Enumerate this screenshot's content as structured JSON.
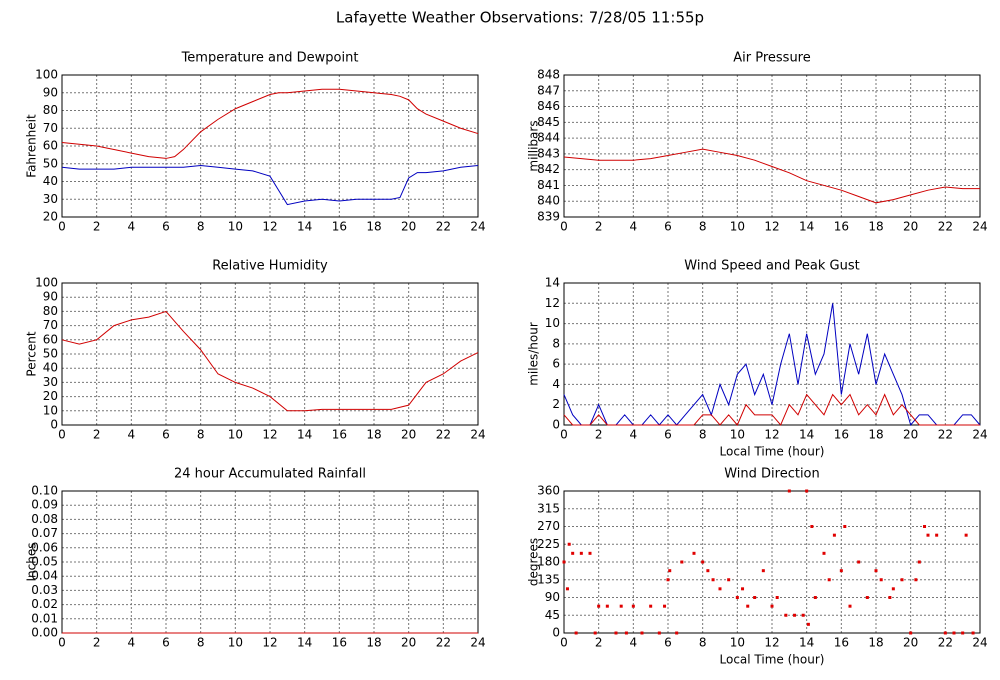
{
  "title": "Lafayette Weather Observations: 7/28/05 11:55p",
  "chart_data": [
    {
      "type": "line",
      "title": "Temperature and Dewpoint",
      "ylabel": "Fahrenheit",
      "x": [
        0,
        1,
        2,
        3,
        4,
        5,
        6,
        6.5,
        7,
        8,
        9,
        10,
        11,
        12,
        12.5,
        13,
        14,
        15,
        16,
        17,
        18,
        19,
        19.5,
        20,
        20.5,
        21,
        22,
        23,
        24
      ],
      "series": [
        {
          "color": "#d00000",
          "values": [
            62,
            61,
            60,
            58,
            56,
            54,
            53,
            54,
            58,
            68,
            75,
            81,
            85,
            89,
            90,
            90,
            91,
            92,
            92,
            91,
            90,
            89,
            88,
            86,
            81,
            78,
            74,
            70,
            67
          ]
        },
        {
          "color": "#0000c0",
          "values": [
            48,
            47,
            47,
            47,
            48,
            48,
            48,
            48,
            48,
            49,
            48,
            47,
            46,
            43,
            35,
            27,
            29,
            30,
            29,
            30,
            30,
            30,
            31,
            42,
            45,
            45,
            46,
            48,
            49
          ]
        }
      ],
      "xlim": [
        0,
        24
      ],
      "xticks": [
        0,
        2,
        4,
        6,
        8,
        10,
        12,
        14,
        16,
        18,
        20,
        22,
        24
      ],
      "ylim": [
        20,
        100
      ],
      "yticks": [
        20,
        30,
        40,
        50,
        60,
        70,
        80,
        90,
        100
      ],
      "grid": true
    },
    {
      "type": "line",
      "title": "Air Pressure",
      "ylabel": "millibars",
      "x": [
        0,
        1,
        2,
        3,
        4,
        5,
        6,
        7,
        8,
        9,
        10,
        11,
        12,
        13,
        14,
        15,
        16,
        17,
        18,
        19,
        20,
        21,
        22,
        23,
        24
      ],
      "series": [
        {
          "color": "#d00000",
          "values": [
            842.8,
            842.7,
            842.6,
            842.6,
            842.6,
            842.7,
            842.9,
            843.1,
            843.3,
            843.1,
            842.9,
            842.6,
            842.2,
            841.8,
            841.3,
            841,
            840.7,
            840.3,
            839.9,
            840.1,
            840.4,
            840.7,
            840.9,
            840.8,
            840.8
          ]
        }
      ],
      "xlim": [
        0,
        24
      ],
      "xticks": [
        0,
        2,
        4,
        6,
        8,
        10,
        12,
        14,
        16,
        18,
        20,
        22,
        24
      ],
      "ylim": [
        839,
        848
      ],
      "yticks": [
        839,
        840,
        841,
        842,
        843,
        844,
        845,
        846,
        847,
        848
      ],
      "grid": true
    },
    {
      "type": "line",
      "title": "Relative Humidity",
      "ylabel": "Percent",
      "x": [
        0,
        1,
        2,
        3,
        4,
        5,
        6,
        7,
        8,
        9,
        10,
        11,
        12,
        13,
        14,
        15,
        16,
        17,
        18,
        19,
        20,
        21,
        22,
        23,
        24
      ],
      "series": [
        {
          "color": "#d00000",
          "values": [
            60,
            57,
            60,
            70,
            74,
            76,
            80,
            66,
            53,
            36,
            30,
            26,
            20,
            10,
            10,
            11,
            11,
            11,
            11,
            11,
            14,
            30,
            36,
            45,
            51
          ]
        }
      ],
      "xlim": [
        0,
        24
      ],
      "xticks": [
        0,
        2,
        4,
        6,
        8,
        10,
        12,
        14,
        16,
        18,
        20,
        22,
        24
      ],
      "ylim": [
        0,
        100
      ],
      "yticks": [
        0,
        10,
        20,
        30,
        40,
        50,
        60,
        70,
        80,
        90,
        100
      ],
      "grid": true
    },
    {
      "type": "line",
      "title": "Wind Speed and Peak Gust",
      "ylabel": "miles/hour",
      "xlabel": "Local Time (hour)",
      "x": [
        0,
        0.5,
        1,
        1.5,
        2,
        2.5,
        3,
        3.5,
        4,
        4.5,
        5,
        5.5,
        6,
        6.5,
        7,
        7.5,
        8,
        8.5,
        9,
        9.5,
        10,
        10.5,
        11,
        11.5,
        12,
        12.5,
        13,
        13.5,
        14,
        14.5,
        15,
        15.5,
        16,
        16.5,
        17,
        17.5,
        18,
        18.5,
        19,
        19.5,
        20,
        20.5,
        21,
        21.5,
        22,
        22.5,
        23,
        23.5,
        24
      ],
      "series": [
        {
          "color": "#0000c0",
          "values": [
            3,
            1,
            0,
            0,
            2,
            0,
            0,
            1,
            0,
            0,
            1,
            0,
            1,
            0,
            1,
            2,
            3,
            1,
            4,
            2,
            5,
            6,
            3,
            5,
            2,
            6,
            9,
            4,
            9,
            5,
            7,
            12,
            3,
            8,
            5,
            9,
            4,
            7,
            5,
            3,
            0,
            1,
            1,
            0,
            0,
            0,
            1,
            1,
            0
          ]
        },
        {
          "color": "#d00000",
          "values": [
            1,
            0,
            0,
            0,
            1,
            0,
            0,
            0,
            0,
            0,
            0,
            0,
            0,
            0,
            0,
            0,
            1,
            1,
            0,
            1,
            0,
            2,
            1,
            1,
            1,
            0,
            2,
            1,
            3,
            2,
            1,
            3,
            2,
            3,
            1,
            2,
            1,
            3,
            1,
            2,
            1,
            0,
            0,
            0,
            0,
            0,
            0,
            0,
            0
          ]
        }
      ],
      "xlim": [
        0,
        24
      ],
      "xticks": [
        0,
        2,
        4,
        6,
        8,
        10,
        12,
        14,
        16,
        18,
        20,
        22,
        24
      ],
      "ylim": [
        0,
        14
      ],
      "yticks": [
        0,
        2,
        4,
        6,
        8,
        10,
        12,
        14
      ],
      "grid": true
    },
    {
      "type": "line",
      "title": "24 hour Accumulated Rainfall",
      "ylabel": "Inches",
      "x": [
        0,
        24
      ],
      "series": [
        {
          "color": "#d00000",
          "values": [
            0,
            0
          ]
        }
      ],
      "xlim": [
        0,
        24
      ],
      "xticks": [
        0,
        2,
        4,
        6,
        8,
        10,
        12,
        14,
        16,
        18,
        20,
        22,
        24
      ],
      "ylim": [
        0,
        0.1
      ],
      "yticks": [
        {
          "value": 0,
          "label": "0.00"
        },
        {
          "value": 0.01,
          "label": "0.01"
        },
        {
          "value": 0.02,
          "label": "0.02"
        },
        {
          "value": 0.03,
          "label": "0.03"
        },
        {
          "value": 0.04,
          "label": "0.04"
        },
        {
          "value": 0.05,
          "label": "0.05"
        },
        {
          "value": 0.06,
          "label": "0.06"
        },
        {
          "value": 0.07,
          "label": "0.07"
        },
        {
          "value": 0.08,
          "label": "0.08"
        },
        {
          "value": 0.09,
          "label": "0.09"
        },
        {
          "value": 0.1,
          "label": "0.10"
        }
      ],
      "grid": true
    },
    {
      "type": "scatter",
      "title": "Wind Direction",
      "ylabel": "degrees",
      "xlabel": "Local Time (hour)",
      "x": [
        0,
        0.2,
        0.3,
        0.5,
        0.7,
        1,
        1.5,
        1.8,
        2,
        2.5,
        3,
        3.3,
        3.6,
        4,
        4.5,
        5,
        5.5,
        5.8,
        6,
        6.1,
        6.5,
        6.8,
        7.5,
        8,
        8.3,
        8.6,
        9,
        9.5,
        10,
        10.3,
        10.6,
        11,
        11.5,
        12,
        12.3,
        12.8,
        13,
        13.3,
        13.8,
        14,
        14.1,
        14.3,
        14.5,
        15,
        15.3,
        15.6,
        16,
        16.2,
        16.5,
        17,
        17.5,
        18,
        18.3,
        18.8,
        19,
        19.5,
        20,
        20.3,
        20.5,
        20.8,
        21,
        21.5,
        22,
        22.5,
        23,
        23.2,
        23.6
      ],
      "series": [
        {
          "color": "#e00000",
          "values": [
            180,
            112,
            225,
            202,
            0,
            202,
            202,
            0,
            68,
            68,
            0,
            68,
            0,
            68,
            0,
            68,
            0,
            68,
            135,
            158,
            0,
            180,
            202,
            180,
            158,
            135,
            112,
            135,
            90,
            112,
            68,
            90,
            158,
            68,
            90,
            45,
            360,
            45,
            45,
            360,
            22,
            270,
            90,
            202,
            135,
            248,
            158,
            270,
            68,
            180,
            90,
            158,
            135,
            90,
            112,
            135,
            0,
            135,
            180,
            270,
            248,
            248,
            0,
            0,
            0,
            248,
            0
          ]
        }
      ],
      "xlim": [
        0,
        24
      ],
      "xticks": [
        0,
        2,
        4,
        6,
        8,
        10,
        12,
        14,
        16,
        18,
        20,
        22,
        24
      ],
      "ylim": [
        0,
        360
      ],
      "yticks": [
        0,
        45,
        90,
        135,
        180,
        225,
        270,
        315,
        360
      ],
      "grid": true
    }
  ]
}
